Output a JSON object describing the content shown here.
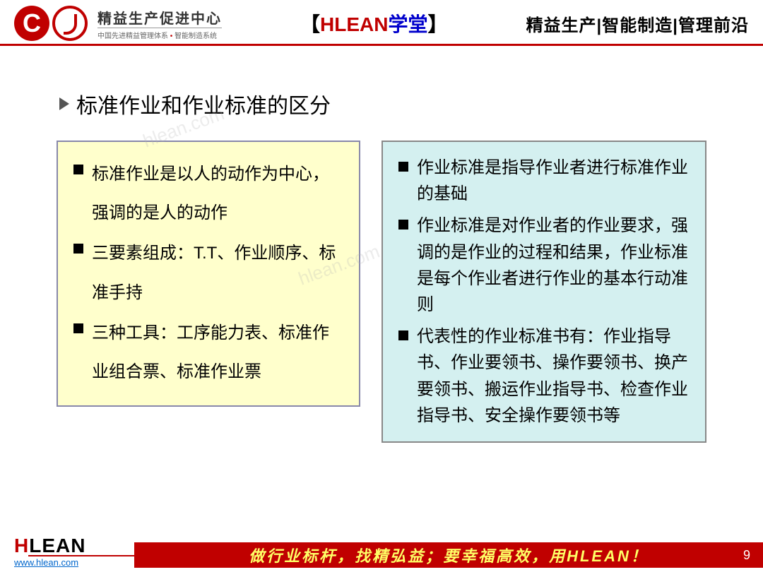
{
  "header": {
    "brand_title": "精益生产促进中心",
    "brand_sub_left": "中国先进精益管理体系",
    "brand_sub_right": "智能制造系统",
    "center_hlean": "HLEAN",
    "center_xuetang": "学堂",
    "right_text": "精益生产|智能制造|管理前沿"
  },
  "section_title": "标准作业和作业标准的区分",
  "left_box": {
    "bg_color": "#ffffcc",
    "border_color": "#8888aa",
    "items": [
      "标准作业是以人的动作为中心，强调的是人的动作",
      "三要素组成：T.T、作业顺序、标准手持",
      "三种工具：工序能力表、标准作业组合票、标准作业票"
    ]
  },
  "right_box": {
    "bg_color": "#d4f0f0",
    "border_color": "#888888",
    "items": [
      "作业标准是指导作业者进行标准作业的基础",
      "作业标准是对作业者的作业要求，强调的是作业的过程和结果，作业标准是每个作业者进行作业的基本行动准则",
      "代表性的作业标准书有：作业指导书、作业要领书、操作要领书、换产要领书、搬运作业指导书、检查作业指导书、安全操作要领书等"
    ]
  },
  "footer": {
    "brand_h": "H",
    "brand_lean": "LEAN",
    "url": "www.hlean.com",
    "slogan": "做行业标杆，找精弘益；要幸福高效，用HLEAN！",
    "page": "9",
    "bar_color": "#c00000",
    "slogan_color": "#ffff66"
  },
  "watermark": "hlean.com"
}
